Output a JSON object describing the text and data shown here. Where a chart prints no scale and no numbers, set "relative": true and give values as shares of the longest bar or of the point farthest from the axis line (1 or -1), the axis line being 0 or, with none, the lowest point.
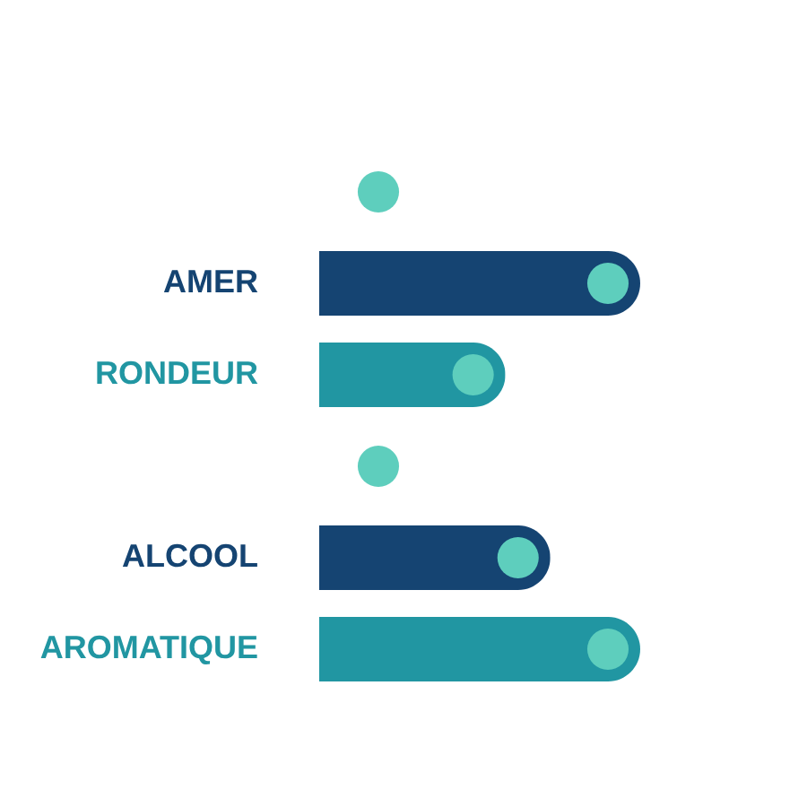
{
  "chart_data": {
    "type": "bar",
    "orientation": "horizontal",
    "relative": true,
    "tick_labels": "y",
    "categories": [
      null,
      "AMER",
      "RONDEUR",
      null,
      "ALCOOL",
      "AROMATIQUE"
    ],
    "series": [
      {
        "colors": [
          null,
          "#154472",
          "#2196a2",
          null,
          "#154472",
          "#2196a2"
        ],
        "values": [
          null,
          1,
          0.58,
          null,
          0.72,
          1
        ]
      }
    ]
  }
}
